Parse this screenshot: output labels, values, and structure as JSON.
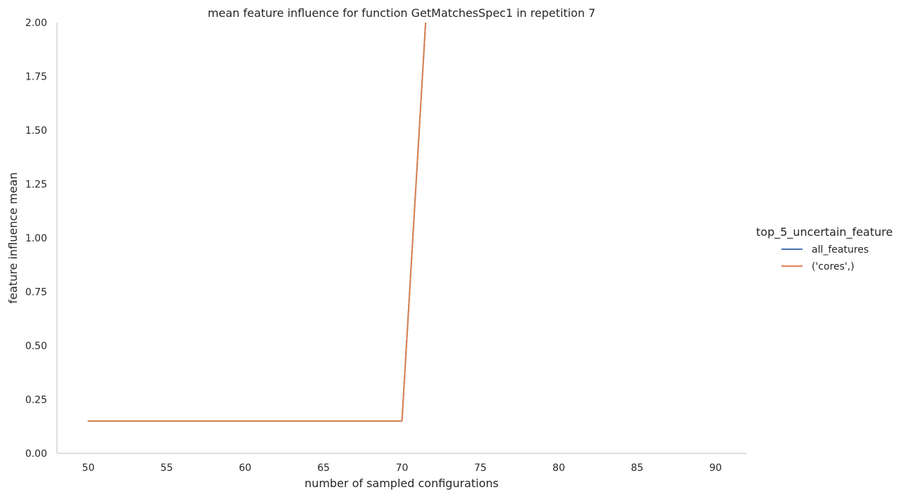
{
  "chart_data": {
    "type": "line",
    "title": "mean feature influence for function GetMatchesSpec1 in repetition 7",
    "xlabel": "number of sampled configurations",
    "ylabel": "feature influence mean",
    "xlim": [
      48,
      92
    ],
    "ylim": [
      0,
      2.0
    ],
    "xticks": [
      50,
      55,
      60,
      65,
      70,
      75,
      80,
      85,
      90
    ],
    "xtick_labels": [
      "50",
      "55",
      "60",
      "65",
      "70",
      "75",
      "80",
      "85",
      "90"
    ],
    "yticks": [
      0,
      0.25,
      0.5,
      0.75,
      1.0,
      1.25,
      1.5,
      1.75,
      2.0
    ],
    "ytick_labels": [
      "0.00",
      "0.25",
      "0.50",
      "0.75",
      "1.00",
      "1.25",
      "1.50",
      "1.75",
      "2.00"
    ],
    "grid": false,
    "legend": {
      "title": "top_5_uncertain_feature",
      "placement": "right"
    },
    "series": [
      {
        "name": "all_features",
        "color": "#4c72b0",
        "x": [
          50,
          70,
          72
        ],
        "y": [
          0.15,
          0.15,
          2.6
        ]
      },
      {
        "name": "('cores',)",
        "color": "#dd8452",
        "x": [
          50,
          70,
          72
        ],
        "y": [
          0.15,
          0.15,
          2.6
        ]
      }
    ]
  }
}
